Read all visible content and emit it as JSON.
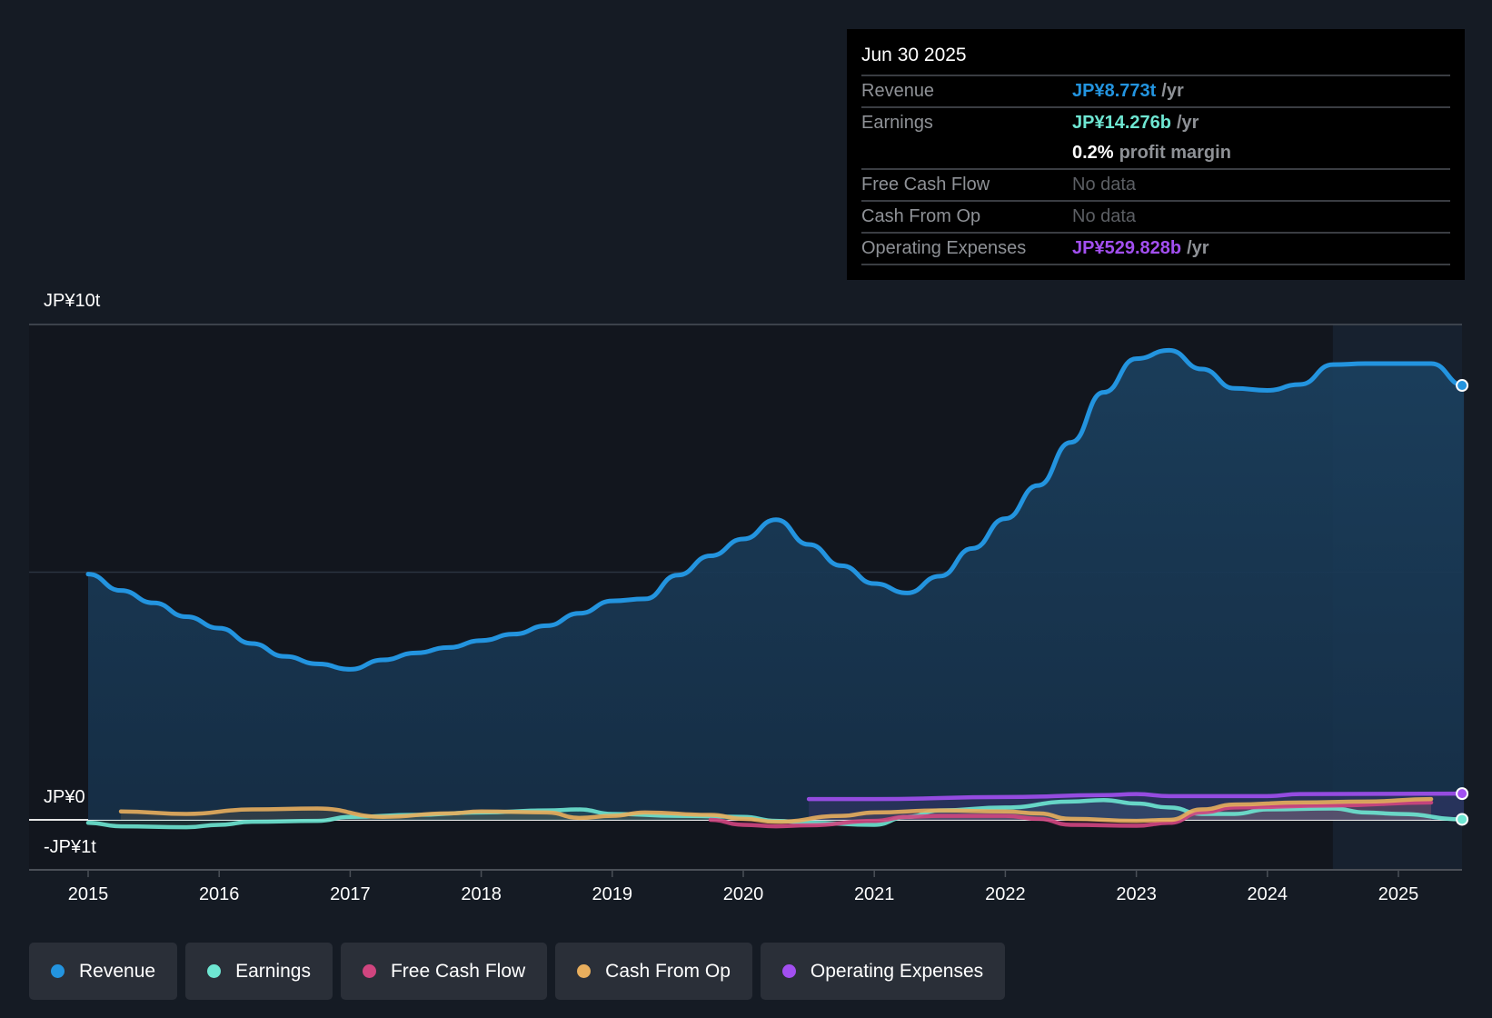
{
  "tooltip": {
    "date": "Jun 30 2025",
    "rows": [
      {
        "label": "Revenue",
        "value": "JP¥8.773t",
        "unit": "/yr"
      },
      {
        "label": "Earnings",
        "value": "JP¥14.276b",
        "unit": "/yr"
      },
      {
        "label": "",
        "value": "0.2%",
        "unit": "profit margin"
      },
      {
        "label": "Free Cash Flow",
        "value": "No data"
      },
      {
        "label": "Cash From Op",
        "value": "No data"
      },
      {
        "label": "Operating Expenses",
        "value": "JP¥529.828b",
        "unit": "/yr"
      }
    ]
  },
  "chart_data": {
    "type": "line",
    "title": "",
    "xlabel": "",
    "ylabel": "",
    "units": "JP¥ trillions",
    "ylim": [
      -1,
      10
    ],
    "xlim": [
      2014.55,
      2025.5
    ],
    "y_tick_labels": [
      "JP¥10t",
      "JP¥0",
      "-JP¥1t"
    ],
    "x_tick_labels": [
      "2015",
      "2016",
      "2017",
      "2018",
      "2019",
      "2020",
      "2021",
      "2022",
      "2023",
      "2024",
      "2025"
    ],
    "highlight_from": 2024.5,
    "legend_position": "bottom-left",
    "series": [
      {
        "name": "Revenue",
        "color": "#2394df",
        "area": true,
        "x": [
          2015,
          2015.25,
          2015.5,
          2015.75,
          2016,
          2016.25,
          2016.5,
          2016.75,
          2017,
          2017.25,
          2017.5,
          2017.75,
          2018,
          2018.25,
          2018.5,
          2018.75,
          2019,
          2019.25,
          2019.5,
          2019.75,
          2020,
          2020.25,
          2020.5,
          2020.75,
          2021,
          2021.25,
          2021.5,
          2021.75,
          2022,
          2022.25,
          2022.5,
          2022.75,
          2023,
          2023.25,
          2023.5,
          2023.75,
          2024,
          2024.25,
          2024.5,
          2024.75,
          2025,
          2025.25,
          2025.5
        ],
        "y": [
          4.96,
          4.63,
          4.38,
          4.1,
          3.87,
          3.56,
          3.3,
          3.15,
          3.04,
          3.23,
          3.37,
          3.48,
          3.62,
          3.75,
          3.92,
          4.17,
          4.42,
          4.46,
          4.94,
          5.33,
          5.67,
          6.06,
          5.56,
          5.13,
          4.77,
          4.58,
          4.92,
          5.48,
          6.08,
          6.75,
          7.62,
          8.63,
          9.31,
          9.48,
          9.1,
          8.71,
          8.67,
          8.79,
          9.19,
          9.21,
          9.21,
          9.21,
          8.77
        ]
      },
      {
        "name": "Earnings",
        "color": "#6ee6d2",
        "x": [
          2015,
          2015.25,
          2015.75,
          2016,
          2016.25,
          2016.75,
          2017,
          2017.5,
          2018,
          2018.5,
          2018.75,
          2019,
          2019.5,
          2020,
          2020.25,
          2020.5,
          2021,
          2021.25,
          2021.5,
          2022,
          2022.5,
          2022.75,
          2023,
          2023.25,
          2023.5,
          2023.75,
          2024,
          2024.5,
          2024.75,
          2025,
          2025.5
        ],
        "y": [
          -0.06,
          -0.13,
          -0.15,
          -0.1,
          -0.04,
          -0.02,
          0.06,
          0.1,
          0.15,
          0.19,
          0.21,
          0.12,
          0.08,
          0.06,
          -0.02,
          -0.06,
          -0.1,
          0.06,
          0.19,
          0.25,
          0.37,
          0.4,
          0.33,
          0.25,
          0.12,
          0.12,
          0.21,
          0.23,
          0.15,
          0.12,
          0.01
        ]
      },
      {
        "name": "Free Cash Flow",
        "color": "#d0457f",
        "x": [
          2019.75,
          2020,
          2020.25,
          2020.5,
          2021,
          2021.25,
          2021.5,
          2022,
          2022.25,
          2022.5,
          2023,
          2023.25,
          2023.5,
          2023.75,
          2024.5,
          2025.25
        ],
        "y": [
          0,
          -0.1,
          -0.13,
          -0.11,
          -0.02,
          0.06,
          0.08,
          0.08,
          0.02,
          -0.1,
          -0.12,
          -0.06,
          0.15,
          0.25,
          0.29,
          0.35
        ]
      },
      {
        "name": "Cash From Op",
        "color": "#e8ae5d",
        "x": [
          2015.25,
          2015.75,
          2016.25,
          2016.75,
          2017.25,
          2017.75,
          2018,
          2018.5,
          2018.75,
          2019,
          2019.25,
          2019.75,
          2020,
          2020.25,
          2020.75,
          2021,
          2021.5,
          2022,
          2022.25,
          2022.5,
          2023,
          2023.25,
          2023.5,
          2023.75,
          2024.25,
          2024.75,
          2025.25
        ],
        "y": [
          0.17,
          0.12,
          0.21,
          0.23,
          0.06,
          0.13,
          0.17,
          0.15,
          0.04,
          0.08,
          0.15,
          0.1,
          0.02,
          -0.04,
          0.08,
          0.15,
          0.19,
          0.17,
          0.13,
          0.02,
          -0.02,
          0,
          0.21,
          0.31,
          0.35,
          0.37,
          0.42
        ]
      },
      {
        "name": "Operating Expenses",
        "color": "#a24ff0",
        "x": [
          2020.5,
          2021,
          2022,
          2022.75,
          2023,
          2023.25,
          2024,
          2024.25,
          2025.5
        ],
        "y": [
          0.42,
          0.42,
          0.46,
          0.5,
          0.52,
          0.48,
          0.48,
          0.52,
          0.53
        ]
      }
    ]
  },
  "colors": {
    "background": "#151b24",
    "revenue": "#2394df",
    "earnings": "#6ee6d2",
    "fcf": "#d0457f",
    "cfo": "#e8ae5d",
    "opex": "#a24ff0"
  }
}
